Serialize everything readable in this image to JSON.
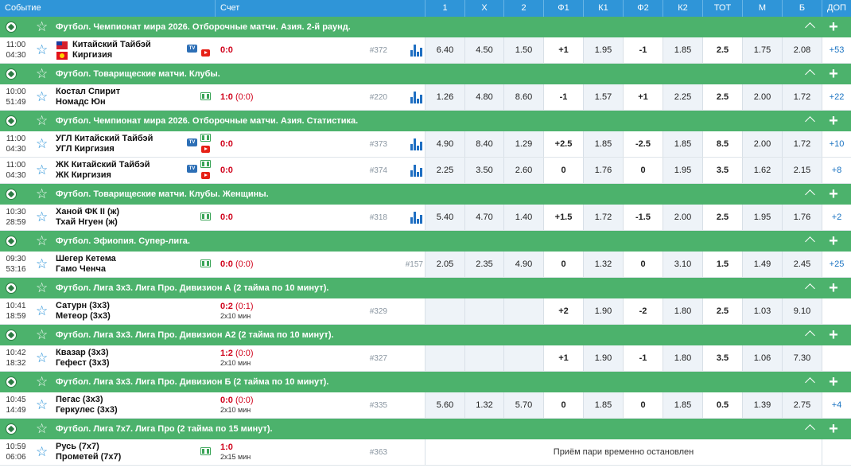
{
  "header": {
    "event": "Событие",
    "score": "Счет",
    "cols": [
      "1",
      "X",
      "2",
      "Ф1",
      "К1",
      "Ф2",
      "К2",
      "ТОТ",
      "М",
      "Б",
      "ДОП"
    ]
  },
  "suspended_text": "Приём пари временно остановлен",
  "leagues": [
    {
      "name": "Футбол. Чемпионат мира 2026. Отборочные матчи. Азия. 2-й раунд.",
      "events": [
        {
          "date": "11:00",
          "time": "04:30",
          "team1": "Китайский Тайбэй",
          "team2": "Киргизия",
          "flags": true,
          "tv": true,
          "live": false,
          "yt": true,
          "score": "0:0",
          "half": "",
          "fmt": "",
          "num": "#372",
          "odds": [
            "6.40",
            "4.50",
            "1.50",
            "+1",
            "1.95",
            "-1",
            "1.85",
            "2.5",
            "1.75",
            "2.08",
            "+53"
          ]
        }
      ]
    },
    {
      "name": "Футбол. Товарищеские матчи. Клубы.",
      "events": [
        {
          "date": "10:00",
          "time": "51:49",
          "team1": "Костал Спирит",
          "team2": "Номадс Юн",
          "flags": false,
          "tv": false,
          "live": true,
          "yt": false,
          "score": "1:0",
          "half": "(0:0)",
          "fmt": "",
          "num": "#220",
          "odds": [
            "1.26",
            "4.80",
            "8.60",
            "-1",
            "1.57",
            "+1",
            "2.25",
            "2.5",
            "2.00",
            "1.72",
            "+22"
          ]
        }
      ]
    },
    {
      "name": "Футбол. Чемпионат мира 2026. Отборочные матчи. Азия. Статистика.",
      "events": [
        {
          "date": "11:00",
          "time": "04:30",
          "team1": "УГЛ Китайский Тайбэй",
          "team2": "УГЛ Киргизия",
          "flags": false,
          "tv": true,
          "live": true,
          "yt": true,
          "score": "0:0",
          "half": "",
          "fmt": "",
          "num": "#373",
          "odds": [
            "4.90",
            "8.40",
            "1.29",
            "+2.5",
            "1.85",
            "-2.5",
            "1.85",
            "8.5",
            "2.00",
            "1.72",
            "+10"
          ]
        },
        {
          "date": "11:00",
          "time": "04:30",
          "team1": "ЖК Китайский Тайбэй",
          "team2": "ЖК Киргизия",
          "flags": false,
          "tv": true,
          "live": true,
          "yt": true,
          "score": "0:0",
          "half": "",
          "fmt": "",
          "num": "#374",
          "odds": [
            "2.25",
            "3.50",
            "2.60",
            "0",
            "1.76",
            "0",
            "1.95",
            "3.5",
            "1.62",
            "2.15",
            "+8"
          ]
        }
      ]
    },
    {
      "name": "Футбол. Товарищеские матчи. Клубы. Женщины.",
      "events": [
        {
          "date": "10:30",
          "time": "28:59",
          "team1": "Ханой ФК II (ж)",
          "team2": "Тхай Нгуен (ж)",
          "flags": false,
          "tv": false,
          "live": true,
          "yt": false,
          "score": "0:0",
          "half": "",
          "fmt": "",
          "num": "#318",
          "odds": [
            "5.40",
            "4.70",
            "1.40",
            "+1.5",
            "1.72",
            "-1.5",
            "2.00",
            "2.5",
            "1.95",
            "1.76",
            "+2"
          ]
        }
      ]
    },
    {
      "name": "Футбол. Эфиопия. Супер-лига.",
      "events": [
        {
          "date": "09:30",
          "time": "53:16",
          "team1": "Шегер Кетема",
          "team2": "Гамо Ченча",
          "flags": false,
          "tv": false,
          "live": true,
          "yt": false,
          "score": "0:0",
          "half": "(0:0)",
          "fmt": "",
          "num": "#157",
          "odds": [
            "2.05",
            "2.35",
            "4.90",
            "0",
            "1.32",
            "0",
            "3.10",
            "1.5",
            "1.49",
            "2.45",
            "+25"
          ]
        }
      ]
    },
    {
      "name": "Футбол. Лига 3х3. Лига Про. Дивизион А (2 тайма по 10 минут).",
      "events": [
        {
          "date": "10:41",
          "time": "18:59",
          "team1": "Сатурн (3х3)",
          "team2": "Метеор (3х3)",
          "flags": false,
          "tv": false,
          "live": false,
          "yt": false,
          "score": "0:2",
          "half": "(0:1)",
          "fmt": "2х10 мин",
          "num": "#329",
          "odds": [
            "",
            "",
            "",
            "+2",
            "1.90",
            "-2",
            "1.80",
            "2.5",
            "1.03",
            "9.10",
            ""
          ]
        }
      ]
    },
    {
      "name": "Футбол. Лига 3х3. Лига Про. Дивизион А2 (2 тайма по 10 минут).",
      "events": [
        {
          "date": "10:42",
          "time": "18:32",
          "team1": "Квазар (3х3)",
          "team2": "Гефест (3х3)",
          "flags": false,
          "tv": false,
          "live": false,
          "yt": false,
          "score": "1:2",
          "half": "(0:0)",
          "fmt": "2х10 мин",
          "num": "#327",
          "odds": [
            "",
            "",
            "",
            "+1",
            "1.90",
            "-1",
            "1.80",
            "3.5",
            "1.06",
            "7.30",
            ""
          ]
        }
      ]
    },
    {
      "name": "Футбол. Лига 3х3. Лига Про. Дивизион Б (2 тайма по 10 минут).",
      "events": [
        {
          "date": "10:45",
          "time": "14:49",
          "team1": "Пегас (3х3)",
          "team2": "Геркулес (3х3)",
          "flags": false,
          "tv": false,
          "live": false,
          "yt": false,
          "score": "0:0",
          "half": "(0:0)",
          "fmt": "2х10 мин",
          "num": "#335",
          "odds": [
            "5.60",
            "1.32",
            "5.70",
            "0",
            "1.85",
            "0",
            "1.85",
            "0.5",
            "1.39",
            "2.75",
            "+4"
          ]
        }
      ]
    },
    {
      "name": "Футбол. Лига 7х7. Лига Про (2 тайма по 15 минут).",
      "events": [
        {
          "date": "10:59",
          "time": "06:06",
          "team1": "Русь (7х7)",
          "team2": "Прометей (7х7)",
          "flags": false,
          "tv": false,
          "live": true,
          "yt": false,
          "score": "1:0",
          "half": "",
          "fmt": "2х15 мин",
          "num": "#363",
          "suspended": true,
          "odds": []
        }
      ]
    }
  ]
}
